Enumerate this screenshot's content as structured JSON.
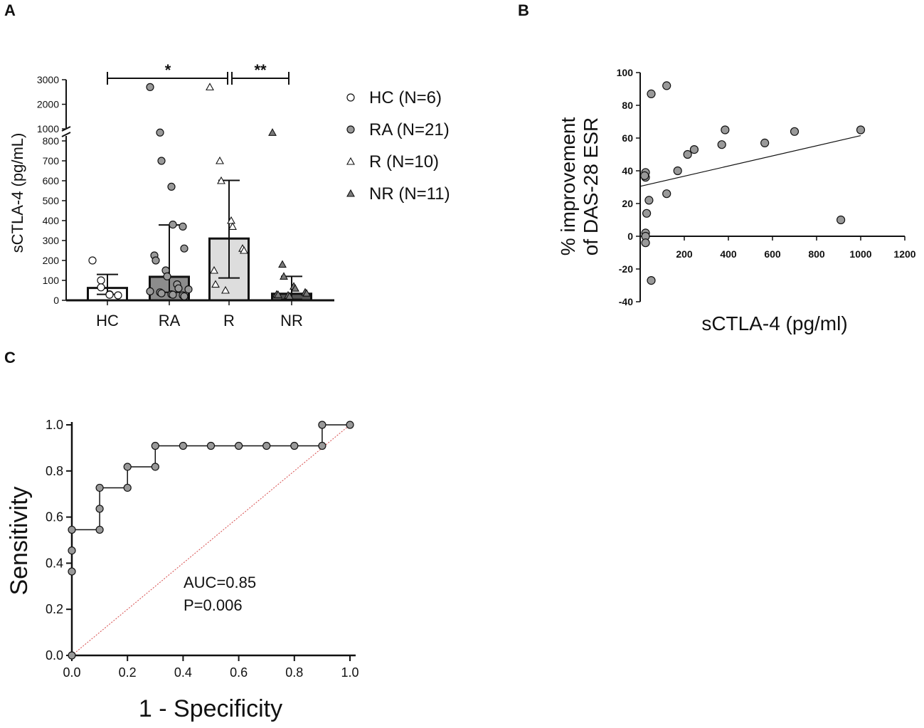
{
  "panels": {
    "a": "A",
    "b": "B",
    "c": "C"
  },
  "colors": {
    "light": "#f4f4f4",
    "mid": "#999999",
    "dark": "#7a7a7a",
    "ref": "#d64a4a",
    "edge": "#111111"
  },
  "chart_data": [
    {
      "id": "A",
      "type": "bar",
      "ylabel": "sCTLA-4 (pg/mL)",
      "categories": [
        "HC",
        "RA",
        "R",
        "NR"
      ],
      "ylim_lower": [
        0,
        800
      ],
      "ylim_upper": [
        800,
        3000
      ],
      "yticks_lower": [
        0,
        100,
        200,
        300,
        400,
        500,
        600,
        700,
        800
      ],
      "yticks_upper": [
        1000,
        2000,
        3000
      ],
      "means": [
        62,
        118,
        310,
        33
      ],
      "sd_upper": [
        130,
        378,
        602,
        120
      ],
      "sd_lower": [
        30,
        40,
        112,
        5
      ],
      "bar_fill": [
        "#ffffff",
        "#8c8c8c",
        "#dddddd",
        "#555555"
      ],
      "marker": [
        "circle-open",
        "circle",
        "triangle-open",
        "triangle"
      ],
      "points": [
        [
          200,
          100,
          65,
          30,
          28,
          25
        ],
        [
          2700,
          850,
          700,
          570,
          380,
          370,
          260,
          225,
          200,
          150,
          120,
          80,
          60,
          55,
          45,
          40,
          35,
          30,
          28,
          25,
          20
        ],
        [
          2700,
          700,
          600,
          400,
          370,
          260,
          250,
          150,
          80,
          50
        ],
        [
          850,
          180,
          120,
          70,
          60,
          40,
          35,
          30,
          28,
          25,
          20
        ]
      ],
      "significance": [
        {
          "from": "HC",
          "to": "R",
          "label": "*"
        },
        {
          "from": "R",
          "to": "NR",
          "label": "**"
        }
      ],
      "legend": [
        {
          "label": "HC (N=6)",
          "marker": "circle-open"
        },
        {
          "label": "RA (N=21)",
          "marker": "circle"
        },
        {
          "label": "R (N=10)",
          "marker": "triangle-open"
        },
        {
          "label": "NR (N=11)",
          "marker": "triangle"
        }
      ]
    },
    {
      "id": "B",
      "type": "scatter",
      "xlabel": "sCTLA-4 (pg/ml)",
      "ylabel_line1": "% improvement",
      "ylabel_line2": "of DAS-28 ESR",
      "xlim": [
        0,
        1200
      ],
      "ylim": [
        -40,
        100
      ],
      "xticks": [
        200,
        400,
        600,
        800,
        1000,
        1200
      ],
      "yticks": [
        -40,
        -20,
        0,
        20,
        40,
        60,
        80,
        100
      ],
      "points": [
        [
          50,
          87
        ],
        [
          120,
          92
        ],
        [
          5,
          39
        ],
        [
          5,
          36
        ],
        [
          20,
          37
        ],
        [
          10,
          14
        ],
        [
          40,
          22
        ],
        [
          5,
          2
        ],
        [
          5,
          0
        ],
        [
          5,
          -4
        ],
        [
          50,
          -27
        ],
        [
          120,
          26
        ],
        [
          170,
          40
        ],
        [
          215,
          50
        ],
        [
          245,
          53
        ],
        [
          370,
          56
        ],
        [
          385,
          65
        ],
        [
          565,
          57
        ],
        [
          700,
          64
        ],
        [
          910,
          10
        ],
        [
          1000,
          65
        ]
      ],
      "fit": [
        [
          0,
          30.5
        ],
        [
          1000,
          61.5
        ]
      ]
    },
    {
      "id": "C",
      "type": "line",
      "xlabel": "1 - Specificity",
      "ylabel": "Sensitivity",
      "xlim": [
        0,
        1
      ],
      "ylim": [
        0,
        1
      ],
      "xticks": [
        "0.0",
        "0.2",
        "0.4",
        "0.6",
        "0.8",
        "1.0"
      ],
      "yticks": [
        "0.0",
        "0.2",
        "0.4",
        "0.6",
        "0.8",
        "1.0"
      ],
      "x": [
        0,
        0,
        0,
        0,
        0.1,
        0.1,
        0.1,
        0.2,
        0.2,
        0.3,
        0.3,
        0.4,
        0.5,
        0.6,
        0.7,
        0.8,
        0.9,
        0.9,
        1.0
      ],
      "y": [
        0,
        0.364,
        0.455,
        0.545,
        0.545,
        0.636,
        0.727,
        0.727,
        0.818,
        0.818,
        0.909,
        0.909,
        0.909,
        0.909,
        0.909,
        0.909,
        0.909,
        1.0,
        1.0
      ],
      "reference": [
        [
          0,
          0
        ],
        [
          1,
          1
        ]
      ],
      "annotation": [
        "AUC=0.85",
        "P=0.006"
      ]
    }
  ]
}
